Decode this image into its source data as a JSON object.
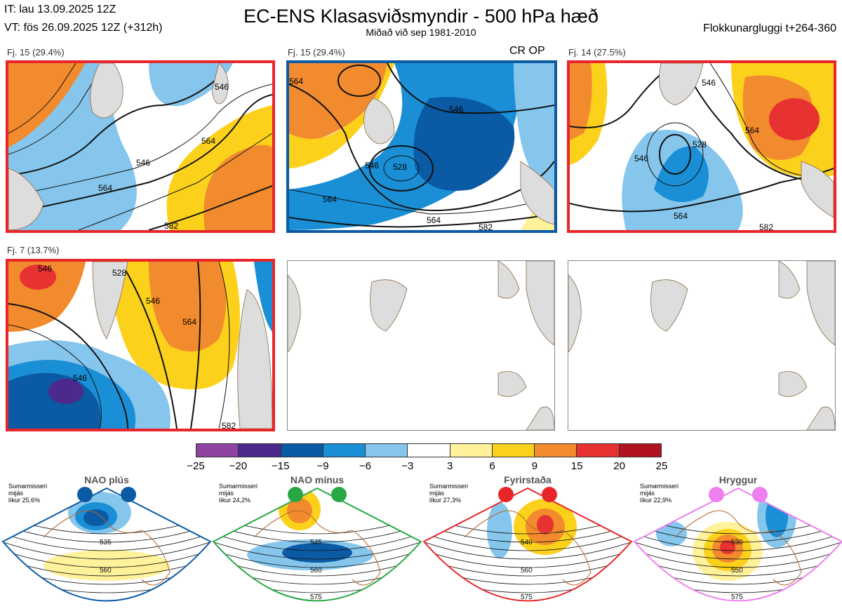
{
  "header": {
    "it_line": "IT: lau 13.09.2025 12Z",
    "vt_line": "VT: fös 26.09.2025 12Z  (+312h)",
    "title": "EC-ENS Klasasviðsmyndir - 500 hPa hæð",
    "subtitle": "Miðað við sep 1981-2010",
    "window": "Flokkunargluggi t+264-360"
  },
  "panels": [
    {
      "label": "Fj. 15 (29.4%)",
      "border": "#e8262a",
      "contours": [
        "546",
        "564",
        "546",
        "564",
        "582"
      ]
    },
    {
      "label": "Fj. 15 (29.4%)",
      "border": "#0a5aa4",
      "tag": "CR OP",
      "contours": [
        "564",
        "546",
        "528",
        "546",
        "564",
        "564",
        "582"
      ]
    },
    {
      "label": "Fj. 14 (27.5%)",
      "border": "#e8262a",
      "contours": [
        "546",
        "564",
        "528",
        "546",
        "564",
        "582"
      ]
    },
    {
      "label": "Fj. 7 (13.7%)",
      "border": "#e8262a",
      "contours": [
        "546",
        "528",
        "546",
        "564",
        "546",
        "582"
      ]
    }
  ],
  "colorbar": {
    "ticks": [
      "−25",
      "−20",
      "−15",
      "−9",
      "−6",
      "−3",
      "3",
      "6",
      "9",
      "15",
      "20",
      "25"
    ],
    "colors": [
      "#8e44a0",
      "#4b2a8c",
      "#0a5aa4",
      "#1a8fd6",
      "#86c6ec",
      "#ffffff",
      "#fff29b",
      "#fbd11c",
      "#f28a2e",
      "#e83232",
      "#b01220"
    ]
  },
  "regimes": [
    {
      "name": "NAO plús",
      "season": "Sumarmisseri",
      "period": "mijás",
      "prob": "líkur 25,6%",
      "color": "#0a5aa4",
      "labels": [
        "535",
        "560"
      ]
    },
    {
      "name": "NAO mínus",
      "season": "Sumarmisseri",
      "period": "mijás",
      "prob": "líkur 24,2%",
      "color": "#27a845",
      "labels": [
        "545",
        "560",
        "575"
      ]
    },
    {
      "name": "Fyrirstaða",
      "season": "Sumarmisseri",
      "period": "mijás",
      "prob": "líkur 27,3%",
      "color": "#e8262a",
      "labels": [
        "540",
        "560",
        "575"
      ]
    },
    {
      "name": "Hryggur",
      "season": "Sumarmisseri",
      "period": "mijás",
      "prob": "líkur 22,9%",
      "color": "#ee7fee",
      "labels": [
        "530",
        "550",
        "575"
      ]
    }
  ]
}
